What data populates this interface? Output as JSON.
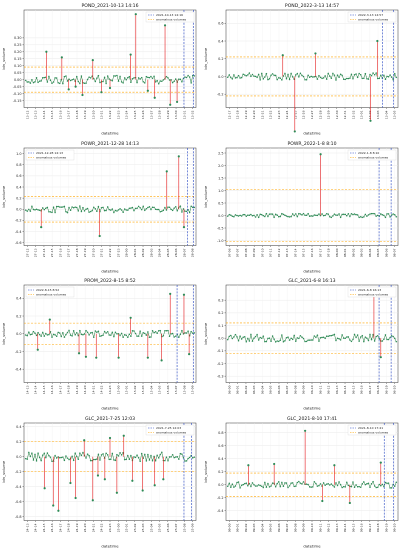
{
  "chart_data": [
    {
      "type": "line",
      "title": "POND_2021-10-13 14:16",
      "xlabel": "datetime",
      "ylabel": "bin_volume",
      "ylim": [
        -0.2,
        0.5
      ],
      "yticks": [
        -0.15,
        -0.1,
        -0.05,
        0.0,
        0.05,
        0.1,
        0.15,
        0.2,
        0.25,
        0.3
      ],
      "ytick_labels": [
        "-0.15",
        "-0.10",
        "-0.05",
        "0.00",
        "0.05",
        "0.10",
        "0.15",
        "0.20",
        "0.25",
        "0.30"
      ],
      "xtick_labels": [
        "13-12",
        "13-13",
        "13-14",
        "13-15",
        "13-16",
        "13-17",
        "13-18",
        "13-19",
        "13-20",
        "13-21",
        "13-22",
        "13-23",
        "13-24",
        "13-25",
        "13-26",
        "13-27",
        "13-28",
        "13-29",
        "13-30",
        "13-31",
        "13-32"
      ],
      "thresholds": [
        0.09,
        -0.09
      ],
      "vlines": [
        0.93,
        0.985
      ],
      "grid": true,
      "legend": [
        "2021-10-13 14:16",
        "anomalous volumes"
      ],
      "legend_position": "top-right",
      "anomalies": [
        {
          "x": 0.13,
          "y": 0.2
        },
        {
          "x": 0.22,
          "y": 0.16
        },
        {
          "x": 0.26,
          "y": -0.07
        },
        {
          "x": 0.3,
          "y": -0.05
        },
        {
          "x": 0.34,
          "y": -0.11
        },
        {
          "x": 0.4,
          "y": 0.14
        },
        {
          "x": 0.45,
          "y": -0.09
        },
        {
          "x": 0.5,
          "y": -0.06
        },
        {
          "x": 0.62,
          "y": 0.18
        },
        {
          "x": 0.65,
          "y": 0.47
        },
        {
          "x": 0.72,
          "y": -0.08
        },
        {
          "x": 0.76,
          "y": -0.13
        },
        {
          "x": 0.82,
          "y": 0.39
        },
        {
          "x": 0.85,
          "y": -0.18
        },
        {
          "x": 0.89,
          "y": -0.16
        }
      ],
      "noise": 0.03
    },
    {
      "type": "line",
      "title": "POND_2022-3-13 14:57",
      "xlabel": "datetime",
      "ylabel": "bin_volume",
      "ylim": [
        -0.35,
        0.75
      ],
      "yticks": [
        -0.2,
        0.0,
        0.2,
        0.4,
        0.6
      ],
      "ytick_labels": [
        "-0.2",
        "0.0",
        "0.2",
        "0.4",
        "0.6"
      ],
      "xtick_labels": [
        "12-17",
        "12-18",
        "12-19",
        "12-20",
        "12-21",
        "12-22",
        "12-23",
        "12-24",
        "12-25",
        "12-26",
        "12-27",
        "12-28",
        "12-29",
        "12-30",
        "12-31",
        "12-32",
        "13-01",
        "13-02",
        "13-03",
        "13-04",
        "13-05"
      ],
      "thresholds": [
        0.22,
        -0.22
      ],
      "vlines": [
        0.91,
        0.975
      ],
      "grid": true,
      "legend": [
        "2022-3-13 14:57",
        "anomalous volumes"
      ],
      "legend_position": "top-right",
      "anomalies": [
        {
          "x": 0.33,
          "y": 0.24
        },
        {
          "x": 0.4,
          "y": -0.62
        },
        {
          "x": 0.52,
          "y": 0.26
        },
        {
          "x": 0.84,
          "y": -0.5
        },
        {
          "x": 0.88,
          "y": 0.4
        }
      ],
      "noise": 0.04
    },
    {
      "type": "line",
      "title": "POWR_2021-12-28 14:13",
      "xlabel": "datetime",
      "ylabel": "bin_volume",
      "ylim": [
        -0.65,
        1.1
      ],
      "yticks": [
        -0.6,
        -0.4,
        -0.2,
        0.0,
        0.2,
        0.4,
        0.6,
        0.8,
        1.0
      ],
      "ytick_labels": [
        "-0.6",
        "-0.4",
        "-0.2",
        "0.0",
        "0.2",
        "0.4",
        "0.6",
        "0.8",
        "1.0"
      ],
      "xtick_labels": [
        "27-12",
        "27-13",
        "27-14",
        "27-15",
        "27-16",
        "27-17",
        "27-18",
        "27-19",
        "27-20",
        "27-21",
        "27-22",
        "27-23",
        "28-00",
        "28-01",
        "28-02",
        "28-03",
        "28-04",
        "28-05",
        "28-06",
        "28-07",
        "28-08"
      ],
      "thresholds": [
        0.23,
        -0.23
      ],
      "vlines": [
        0.95,
        0.985
      ],
      "grid": true,
      "legend": [
        "2021-12-28 14:13",
        "anomalous volumes"
      ],
      "legend_position": "top-left",
      "anomalies": [
        {
          "x": 0.1,
          "y": -0.32
        },
        {
          "x": 0.44,
          "y": -0.48
        },
        {
          "x": 0.83,
          "y": 0.68
        },
        {
          "x": 0.9,
          "y": 0.95
        },
        {
          "x": 0.93,
          "y": -0.32
        }
      ],
      "noise": 0.06
    },
    {
      "type": "line",
      "title": "POWR_2022-1-8 8:10",
      "xlabel": "datetime",
      "ylabel": "bin_volume",
      "ylim": [
        -1.2,
        2.7
      ],
      "yticks": [
        -1.0,
        -0.5,
        0.0,
        0.5,
        1.0,
        1.5,
        2.0,
        2.5
      ],
      "ytick_labels": [
        "-1.0",
        "-0.5",
        "0.0",
        "0.5",
        "1.0",
        "1.5",
        "2.0",
        "2.5"
      ],
      "xtick_labels": [
        "07-06",
        "07-07",
        "07-08",
        "07-09",
        "07-10",
        "07-11",
        "07-12",
        "07-13",
        "07-14",
        "07-15",
        "07-16",
        "07-17",
        "07-18",
        "08-00",
        "08-01",
        "08-02",
        "08-03",
        "08-04",
        "08-05",
        "08-06",
        "08-07"
      ],
      "thresholds": [
        1.05,
        -1.05
      ],
      "vlines": [
        0.89,
        0.96
      ],
      "grid": true,
      "legend": [
        "2022-1-8 8:10",
        "anomalous volumes"
      ],
      "legend_position": "top-right",
      "anomalies": [
        {
          "x": 0.55,
          "y": 2.45
        }
      ],
      "noise": 0.08
    },
    {
      "type": "line",
      "title": "PROM_2022-8-15 8:52",
      "xlabel": "datetime",
      "ylabel": "bin_volume",
      "ylim": [
        -0.55,
        0.55
      ],
      "yticks": [
        -0.4,
        -0.2,
        0.0,
        0.2,
        0.4
      ],
      "ytick_labels": [
        "-0.4",
        "-0.2",
        "0.0",
        "0.2",
        "0.4"
      ],
      "xtick_labels": [
        "14-13",
        "14-14",
        "14-15",
        "14-16",
        "14-17",
        "14-18",
        "14-19",
        "14-20",
        "14-21",
        "14-22",
        "14-23",
        "15-00",
        "15-01",
        "15-02",
        "15-03",
        "15-04",
        "15-05",
        "15-06",
        "15-07",
        "15-08",
        "15-09"
      ],
      "thresholds": [
        0.12,
        -0.12
      ],
      "vlines": [
        0.89,
        0.985
      ],
      "grid": true,
      "legend": [
        "2022-8-15 8:52",
        "anomalous volumes"
      ],
      "legend_position": "top-left",
      "anomalies": [
        {
          "x": 0.08,
          "y": -0.18
        },
        {
          "x": 0.15,
          "y": 0.16
        },
        {
          "x": 0.32,
          "y": -0.22
        },
        {
          "x": 0.36,
          "y": -0.26
        },
        {
          "x": 0.42,
          "y": -0.27
        },
        {
          "x": 0.55,
          "y": -0.27
        },
        {
          "x": 0.62,
          "y": 0.18
        },
        {
          "x": 0.72,
          "y": -0.27
        },
        {
          "x": 0.8,
          "y": -0.3
        },
        {
          "x": 0.85,
          "y": 0.45
        },
        {
          "x": 0.93,
          "y": 0.44
        },
        {
          "x": 0.96,
          "y": -0.23
        }
      ],
      "noise": 0.04
    },
    {
      "type": "line",
      "title": "GLC_2021-6-8 16:13",
      "xlabel": "datetime",
      "ylabel": "bin_volume",
      "ylim": [
        -0.35,
        0.42
      ],
      "yticks": [
        -0.3,
        -0.2,
        -0.1,
        0.0,
        0.1,
        0.2,
        0.3
      ],
      "ytick_labels": [
        "-0.3",
        "-0.2",
        "-0.1",
        "0.0",
        "0.1",
        "0.2",
        "0.3"
      ],
      "xtick_labels": [
        "06-00",
        "06-01",
        "06-02",
        "06-03",
        "06-04",
        "06-05",
        "06-06",
        "06-07",
        "06-08",
        "06-09",
        "06-10",
        "06-11",
        "06-12",
        "06-13",
        "06-14",
        "06-15",
        "06-16",
        "06-17",
        "06-18",
        "06-19",
        "06-20"
      ],
      "thresholds": [
        0.12,
        -0.12
      ],
      "vlines": [
        0.89,
        0.96
      ],
      "grid": true,
      "legend": [
        "2021-6-8 16:13",
        "anomalous volumes"
      ],
      "legend_position": "top-right",
      "anomalies": [
        {
          "x": 0.86,
          "y": 0.35
        },
        {
          "x": 0.9,
          "y": -0.15
        }
      ],
      "noise": 0.03
    },
    {
      "type": "line",
      "title": "GLC_2021-7-25 12:03",
      "xlabel": "datetime",
      "ylabel": "bin_volume",
      "ylim": [
        -0.85,
        0.45
      ],
      "yticks": [
        -0.8,
        -0.6,
        -0.4,
        -0.2,
        0.0,
        0.2,
        0.4
      ],
      "ytick_labels": [
        "-0.8",
        "-0.6",
        "-0.4",
        "-0.2",
        "0.0",
        "0.2",
        "0.4"
      ],
      "xtick_labels": [
        "24-13",
        "24-14",
        "24-15",
        "24-16",
        "24-17",
        "24-18",
        "24-19",
        "24-20",
        "24-21",
        "24-22",
        "24-23",
        "25-00",
        "25-01",
        "25-02",
        "25-03",
        "25-04",
        "25-05",
        "25-06",
        "25-07",
        "25-08",
        "25-09"
      ],
      "thresholds": [
        0.2,
        -0.2
      ],
      "vlines": [
        0.93,
        0.975
      ],
      "grid": true,
      "legend": [
        "2021-7-25 12:03",
        "anomalous volumes"
      ],
      "legend_position": "top-right",
      "anomalies": [
        {
          "x": 0.12,
          "y": -0.42
        },
        {
          "x": 0.17,
          "y": -0.65
        },
        {
          "x": 0.2,
          "y": -0.72
        },
        {
          "x": 0.27,
          "y": -0.35
        },
        {
          "x": 0.3,
          "y": -0.55
        },
        {
          "x": 0.35,
          "y": 0.22
        },
        {
          "x": 0.4,
          "y": -0.58
        },
        {
          "x": 0.43,
          "y": -0.25
        },
        {
          "x": 0.47,
          "y": -0.3
        },
        {
          "x": 0.5,
          "y": 0.25
        },
        {
          "x": 0.54,
          "y": -0.48
        },
        {
          "x": 0.58,
          "y": 0.28
        },
        {
          "x": 0.63,
          "y": -0.32
        },
        {
          "x": 0.69,
          "y": -0.45
        },
        {
          "x": 0.76,
          "y": -0.38
        },
        {
          "x": 0.81,
          "y": -0.3
        }
      ],
      "noise": 0.06
    },
    {
      "type": "line",
      "title": "GLC_2021-8-10 17:41",
      "xlabel": "datetime",
      "ylabel": "bin_volume",
      "ylim": [
        -0.55,
        0.95
      ],
      "yticks": [
        -0.4,
        -0.2,
        0.0,
        0.2,
        0.4,
        0.6,
        0.8
      ],
      "ytick_labels": [
        "-0.4",
        "-0.2",
        "0.0",
        "0.2",
        "0.4",
        "0.6",
        "0.8"
      ],
      "xtick_labels": [
        "09-00",
        "09-01",
        "09-02",
        "09-03",
        "09-04",
        "09-05",
        "09-06",
        "09-07",
        "09-08",
        "09-09",
        "09-10",
        "09-11",
        "09-12",
        "09-13",
        "09-14",
        "09-15",
        "09-16",
        "09-17",
        "09-18",
        "09-19",
        "09-20"
      ],
      "thresholds": [
        0.18,
        -0.18
      ],
      "vlines": [
        0.92,
        0.975
      ],
      "grid": true,
      "legend": [
        "2021-8-10 17:41",
        "anomalous volumes"
      ],
      "legend_position": "top-right",
      "anomalies": [
        {
          "x": 0.13,
          "y": 0.3
        },
        {
          "x": 0.28,
          "y": 0.32
        },
        {
          "x": 0.46,
          "y": 0.83
        },
        {
          "x": 0.56,
          "y": -0.25
        },
        {
          "x": 0.63,
          "y": 0.3
        },
        {
          "x": 0.72,
          "y": -0.28
        },
        {
          "x": 0.9,
          "y": 0.34
        }
      ],
      "noise": 0.05
    }
  ],
  "colors": {
    "series": "#1f7a3a",
    "marker": "#2e8b57",
    "anomaly": "#e41a1c",
    "threshold": "#ffa500",
    "vline": "#1f3fbf",
    "zero": "#222222"
  }
}
